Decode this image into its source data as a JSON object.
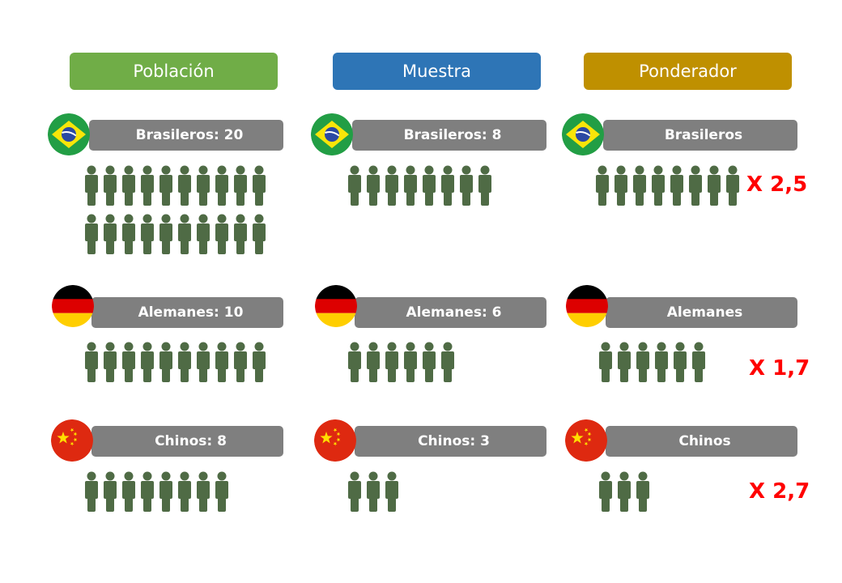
{
  "colors": {
    "poblacion": "#70ad47",
    "muestra": "#2e75b6",
    "ponderador": "#bf9000",
    "label_bar": "#7f7f7f",
    "person": "#4f6b45",
    "multiplier": "#ff0000"
  },
  "headers": {
    "poblacion": "Población",
    "muestra": "Muestra",
    "ponderador": "Ponderador"
  },
  "poblacion": {
    "brazil": {
      "label": "Brasileros: 20",
      "count": 20,
      "flag": "brazil-flag-icon"
    },
    "germany": {
      "label": "Alemanes: 10",
      "count": 10,
      "flag": "germany-flag-icon"
    },
    "china": {
      "label": "Chinos: 8",
      "count": 8,
      "flag": "china-flag-icon"
    }
  },
  "muestra": {
    "brazil": {
      "label": "Brasileros: 8",
      "count": 8
    },
    "germany": {
      "label": "Alemanes: 6",
      "count": 6
    },
    "china": {
      "label": "Chinos: 3",
      "count": 3
    }
  },
  "ponderador": {
    "brazil": {
      "label": "Brasileros",
      "count": 8,
      "weight": "X 2,5"
    },
    "germany": {
      "label": "Alemanes",
      "count": 6,
      "weight": "X 1,7"
    },
    "china": {
      "label": "Chinos",
      "count": 3,
      "weight": "X 2,7"
    }
  },
  "icons": {
    "person": "person-icon"
  }
}
